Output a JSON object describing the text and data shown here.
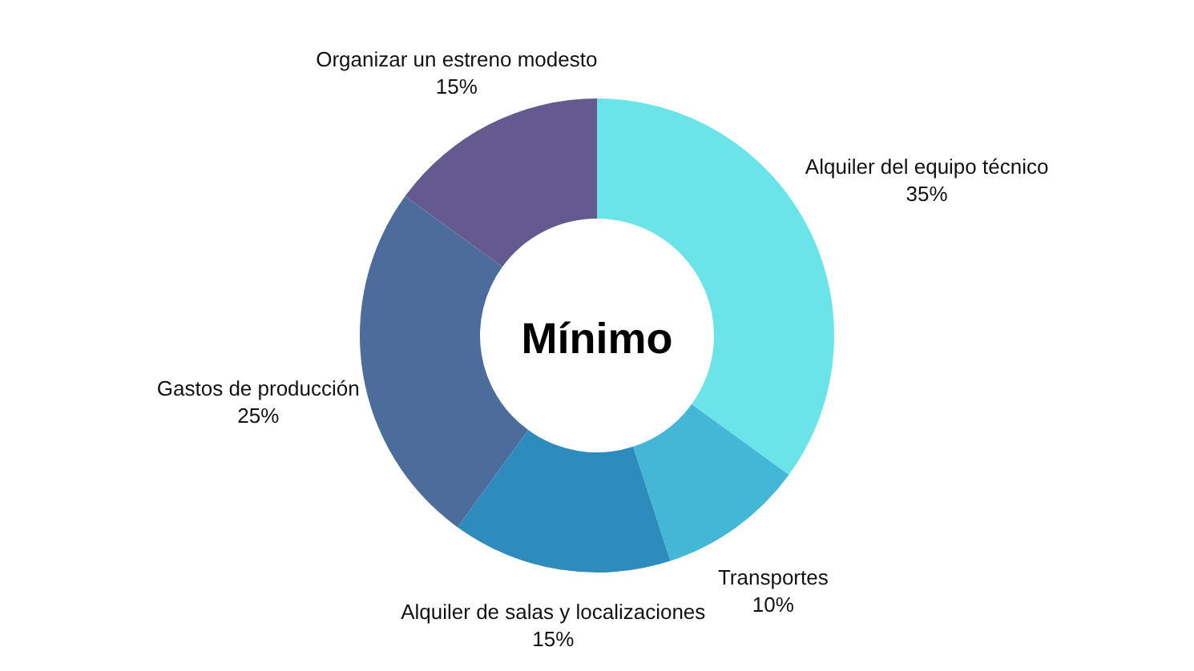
{
  "chart_data": {
    "type": "donut",
    "title": "Mínimo",
    "categories": [
      "Alquiler del equipo técnico",
      "Transportes",
      "Alquiler de salas y localizaciones",
      "Gastos de producción",
      "Organizar un estreno modesto"
    ],
    "values": [
      35,
      10,
      15,
      25,
      15
    ],
    "value_labels": [
      "35%",
      "10%",
      "15%",
      "25%",
      "15%"
    ],
    "colors": [
      "#6be4e9",
      "#44b7d6",
      "#2e8cbd",
      "#4c6d9c",
      "#645a8f"
    ]
  }
}
